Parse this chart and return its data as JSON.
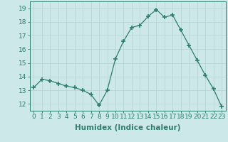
{
  "x": [
    0,
    1,
    2,
    3,
    4,
    5,
    6,
    7,
    8,
    9,
    10,
    11,
    12,
    13,
    14,
    15,
    16,
    17,
    18,
    19,
    20,
    21,
    22,
    23
  ],
  "y": [
    13.2,
    13.8,
    13.7,
    13.5,
    13.3,
    13.2,
    13.0,
    12.7,
    11.9,
    13.0,
    15.3,
    16.6,
    17.6,
    17.75,
    18.4,
    18.9,
    18.35,
    18.5,
    17.4,
    16.3,
    15.2,
    14.1,
    13.1,
    11.8
  ],
  "line_color": "#2e7d6e",
  "marker": "+",
  "marker_size": 4,
  "marker_lw": 1.2,
  "bg_color": "#cce8e8",
  "grid_color": "#b8d4d4",
  "xlabel": "Humidex (Indice chaleur)",
  "ylim": [
    11.5,
    19.5
  ],
  "yticks": [
    12,
    13,
    14,
    15,
    16,
    17,
    18,
    19
  ],
  "xticks": [
    0,
    1,
    2,
    3,
    4,
    5,
    6,
    7,
    8,
    9,
    10,
    11,
    12,
    13,
    14,
    15,
    16,
    17,
    18,
    19,
    20,
    21,
    22,
    23
  ],
  "tick_color": "#2e7d6e",
  "label_fontsize": 7.5,
  "tick_fontsize": 6.5
}
